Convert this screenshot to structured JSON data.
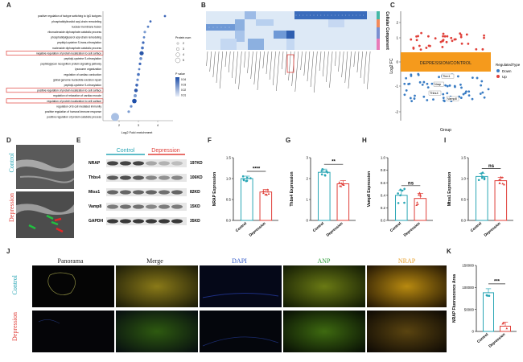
{
  "panel_labels": [
    "A",
    "B",
    "C",
    "D",
    "E",
    "F",
    "G",
    "H",
    "I",
    "J",
    "K"
  ],
  "panelA": {
    "xlabel": "Log2 Fold enrichment",
    "terms": [
      "positive regulation of isotype switching to IgG isotypes",
      "phosphatidylinositol acyl-chain remodeling",
      "nuclear membrane fusion",
      "ribonucleoside diphosphate catabolic process",
      "phosphatidylglycerol acyl-chain remodeling",
      "peptidyl-cysteine S-trans-nitrosylation",
      "nucleoside diphosphate catabolic process",
      "negative regulation of protein localization to cell surface",
      "peptidyl-cysteine S-nitrosylation",
      "peptidoglycan recognition protein signaling pathway",
      "lysosome organization",
      "regulation of cardiac conduction",
      "global genome nucleotide-excision repair",
      "peptidyl-cysteine S-nitrosylation",
      "positive regulation of protein localization to cell surface",
      "regulation of relaxation of cardiac muscle",
      "regulation of protein localization to cell surface",
      "regulation of B cell mediated immunity",
      "positive regulation of humoral immune response",
      "positive regulation of protein catabolic process"
    ],
    "highlighted": [
      7,
      14,
      16
    ],
    "legend_size_title": "Protein num",
    "legend_size_values": [
      "2",
      "3",
      "4",
      "5"
    ],
    "legend_color_title": "P value",
    "legend_color_values": [
      "0.04",
      "0.03",
      "0.02",
      "0.01"
    ],
    "ticks": [
      "2",
      "3",
      "4"
    ]
  },
  "panelB": {
    "side_label": "Cellular Component"
  },
  "panelC": {
    "ylabel": "Log2 FC",
    "xlabel": "Group",
    "banner": "DEPRESSION/CONTROL",
    "legend_title": "RegulatedType",
    "legend_items": [
      {
        "label": "Down",
        "color": "#3b7dc4"
      },
      {
        "label": "Up",
        "color": "#e0403a"
      }
    ],
    "callouts": [
      "Nrap",
      "Tlnn1",
      "Thbs4",
      "Vamp8"
    ],
    "yticks": [
      "2",
      "1",
      "0",
      "-1",
      "-2"
    ]
  },
  "panelD": {
    "rows": [
      "Control",
      "Depression"
    ]
  },
  "panelE": {
    "groups": [
      "Control",
      "Depression"
    ],
    "bands": [
      {
        "name": "NRAP",
        "kda": "197KD"
      },
      {
        "name": "Thbs4",
        "kda": "106KD"
      },
      {
        "name": "Mtss1",
        "kda": "82KD"
      },
      {
        "name": "Vamp8",
        "kda": "15KD"
      },
      {
        "name": "GAPDH",
        "kda": "35KD"
      }
    ]
  },
  "panelF": {
    "ylabel": "NRAP Expression",
    "sig": "****",
    "categories": [
      "Control",
      "Depression"
    ],
    "yticks": [
      "1.5",
      "1.0",
      "0.5",
      "0.0"
    ]
  },
  "panelG": {
    "ylabel": "Thbs4 Expression",
    "sig": "**",
    "categories": [
      "Control",
      "Depression"
    ],
    "yticks": [
      "3",
      "2",
      "1",
      "0"
    ]
  },
  "panelH": {
    "ylabel": "Vamp8 Expression",
    "sig": "ns",
    "categories": [
      "Control",
      "Depression"
    ],
    "yticks": [
      "1.0",
      "0.8",
      "0.6",
      "0.4",
      "0.2",
      "0.0"
    ]
  },
  "panelI": {
    "ylabel": "Mtss1 Expression",
    "sig": "ns",
    "categories": [
      "Control",
      "Depression"
    ],
    "yticks": [
      "1.5",
      "1.0",
      "0.5",
      "0.0"
    ]
  },
  "panelJ": {
    "columns": [
      {
        "label": "Panorama",
        "color": "#222222"
      },
      {
        "label": "Merge",
        "color": "#222222"
      },
      {
        "label": "DAPI",
        "color": "#2c55c8"
      },
      {
        "label": "ANP",
        "color": "#2f9e3a"
      },
      {
        "label": "NRAP",
        "color": "#e8a02a"
      }
    ],
    "rows": [
      "Control",
      "Depression"
    ]
  },
  "panelK": {
    "ylabel": "NRAP Fluorescence Area",
    "sig": "***",
    "categories": [
      "Control",
      "Depression"
    ],
    "yticks": [
      "150000",
      "100000",
      "50000",
      "0"
    ]
  },
  "chart_data": [
    {
      "type": "bar",
      "categories": [
        "Control",
        "Depression"
      ],
      "values": [
        1.0,
        0.68
      ],
      "ylabel": "NRAP Expression",
      "ylim": [
        0,
        1.5
      ]
    },
    {
      "type": "bar",
      "categories": [
        "Control",
        "Depression"
      ],
      "values": [
        2.3,
        1.75
      ],
      "ylabel": "Thbs4 Expression",
      "ylim": [
        0,
        3
      ]
    },
    {
      "type": "bar",
      "categories": [
        "Control",
        "Depression"
      ],
      "values": [
        0.4,
        0.35
      ],
      "ylabel": "Vamp8 Expression",
      "ylim": [
        0,
        1.0
      ]
    },
    {
      "type": "bar",
      "categories": [
        "Control",
        "Depression"
      ],
      "values": [
        1.05,
        0.95
      ],
      "ylabel": "Mtss1 Expression",
      "ylim": [
        0,
        1.5
      ]
    },
    {
      "type": "bar",
      "categories": [
        "Control",
        "Depression"
      ],
      "values": [
        88000,
        12000
      ],
      "ylabel": "NRAP Fluorescence Area",
      "ylim": [
        0,
        150000
      ]
    }
  ]
}
